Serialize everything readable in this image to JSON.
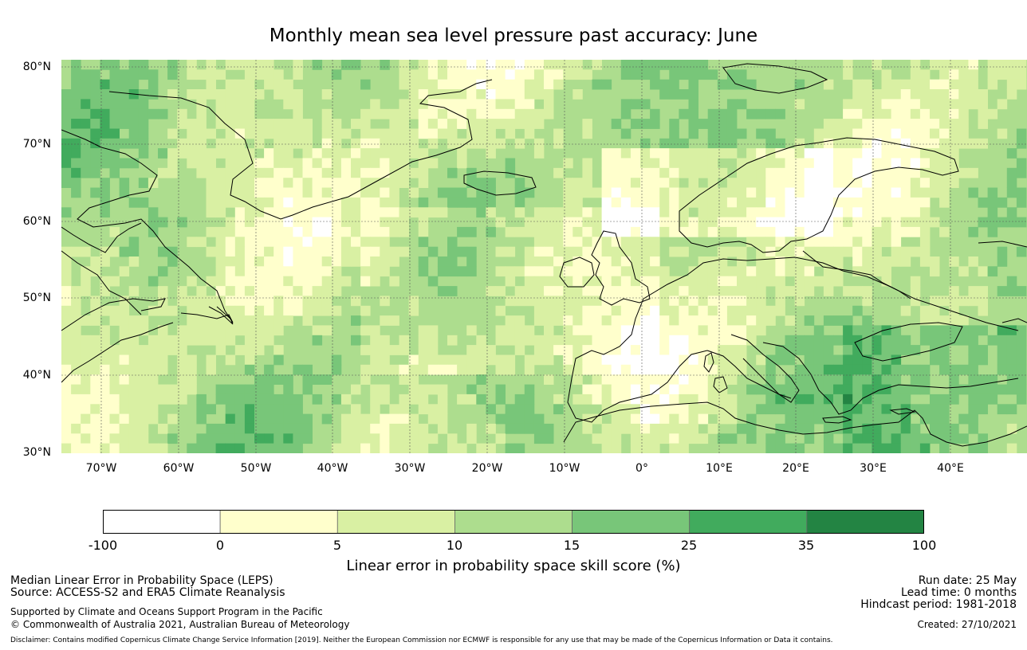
{
  "title": "Monthly mean sea level pressure past accuracy: June",
  "lat_labels": [
    "80°N",
    "70°N",
    "60°N",
    "50°N",
    "40°N",
    "30°N"
  ],
  "lon_labels": [
    "70°W",
    "60°W",
    "50°W",
    "40°W",
    "30°W",
    "20°W",
    "10°W",
    "0°",
    "10°E",
    "20°E",
    "30°E",
    "40°E"
  ],
  "colorbar": {
    "ticks": [
      "-100",
      "0",
      "5",
      "10",
      "15",
      "25",
      "35",
      "100"
    ],
    "colors": [
      "#ffffff",
      "#ffffcc",
      "#d9f0a3",
      "#addd8e",
      "#78c679",
      "#41ab5d",
      "#238443"
    ],
    "label": "Linear error in probability space skill score (%)"
  },
  "info_left": {
    "line1": "Median Linear Error in Probability Space (LEPS)",
    "line2": "Source: ACCESS-S2 and ERA5 Climate Reanalysis",
    "line3": "Supported by Climate and Oceans Support Program in the Pacific",
    "line4": "© Commonwealth of Australia 2021, Australian Bureau of Meteorology"
  },
  "info_right": {
    "run_date": "Run date: 25 May",
    "lead_time": "Lead time: 0 months",
    "hindcast": "Hindcast period: 1981-2018",
    "created": "Created: 27/10/2021"
  },
  "disclaimer": "Disclaimer: Contains modified Copernicus Climate Change Service Information [2019]. Neither the European Commission nor ECMWF is responsible for any use that may be made of the Copernicus Information or Data it contains."
}
